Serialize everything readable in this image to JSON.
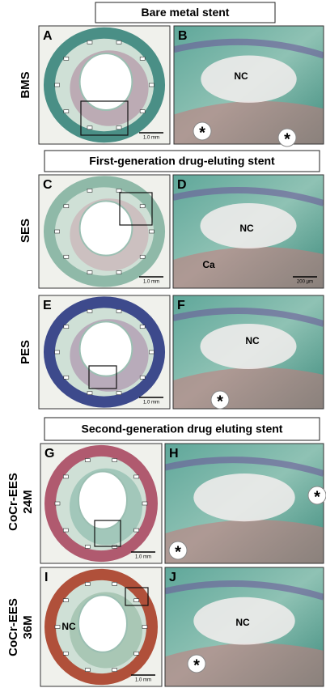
{
  "sections": [
    {
      "title": "Bare metal stent"
    },
    {
      "title": "First-generation drug-eluting stent"
    },
    {
      "title": "Second-generation drug eluting stent"
    }
  ],
  "rows": [
    {
      "lines": [
        "BMS"
      ]
    },
    {
      "lines": [
        "SES"
      ]
    },
    {
      "lines": [
        "PES"
      ]
    },
    {
      "lines": [
        "CoCr-EES",
        "24M"
      ]
    },
    {
      "lines": [
        "CoCr-EES",
        "36M"
      ]
    }
  ],
  "panels": [
    {
      "letter": "A",
      "scale": "1.0 mm"
    },
    {
      "letter": "B",
      "labels": [
        "NC",
        "*",
        "*"
      ]
    },
    {
      "letter": "C",
      "scale": "1.0 mm"
    },
    {
      "letter": "D",
      "labels": [
        "NC",
        "Ca"
      ],
      "scale": "200 µm"
    },
    {
      "letter": "E",
      "scale": "1.0 mm"
    },
    {
      "letter": "F",
      "labels": [
        "NC",
        "*"
      ]
    },
    {
      "letter": "G",
      "scale": "1.0 mm"
    },
    {
      "letter": "H",
      "labels": [
        "*",
        "*"
      ]
    },
    {
      "letter": "I",
      "labels": [
        "NC"
      ],
      "scale": "1.0 mm"
    },
    {
      "letter": "J",
      "labels": [
        "NC",
        "*"
      ]
    }
  ]
}
